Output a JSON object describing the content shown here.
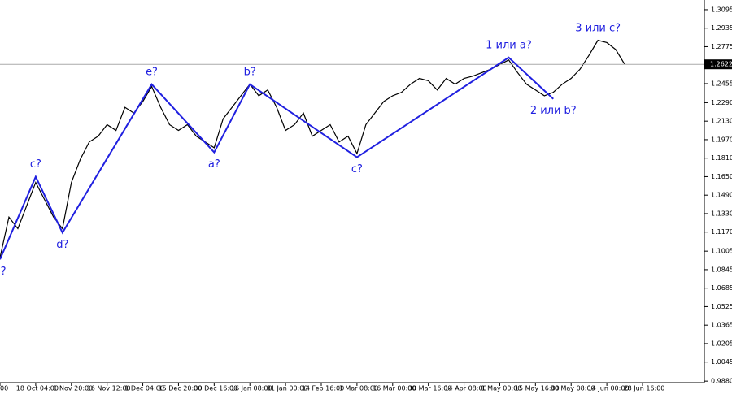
{
  "chart_data": {
    "type": "line",
    "categories": [
      "00",
      null,
      null,
      null,
      "18 Oct 04:00",
      null,
      null,
      null,
      "1 Nov 20:00",
      null,
      null,
      null,
      "16 Nov 12:00",
      null,
      null,
      null,
      "1 Dec 04:00",
      null,
      null,
      null,
      "15 Dec 20:00",
      null,
      null,
      null,
      "30 Dec 16:00",
      null,
      null,
      null,
      "16 Jan 08:00",
      null,
      null,
      null,
      "31 Jan 00:00",
      null,
      null,
      null,
      "14 Feb 16:00",
      null,
      null,
      null,
      "1 Mar 08:00",
      null,
      null,
      null,
      "16 Mar 00:00",
      null,
      null,
      null,
      "30 Mar 16:00",
      null,
      null,
      null,
      "14 Apr 08:00",
      null,
      null,
      null,
      "1 May 00:00",
      null,
      null,
      null,
      "15 May 16:00",
      null,
      null,
      null,
      "30 May 08:00",
      null,
      null,
      null,
      "14 Jun 00:00",
      null,
      null,
      null,
      "28 Jun 16:00"
    ],
    "series": [
      {
        "color": "#000000",
        "values": [
          1.095,
          1.13,
          1.12,
          1.14,
          1.16,
          1.145,
          1.13,
          1.12,
          1.16,
          1.18,
          1.195,
          1.2,
          1.21,
          1.205,
          1.225,
          1.22,
          1.23,
          1.243,
          1.225,
          1.21,
          1.205,
          1.21,
          1.2,
          1.195,
          1.19,
          1.215,
          1.225,
          1.235,
          1.245,
          1.235,
          1.24,
          1.225,
          1.205,
          1.21,
          1.22,
          1.2,
          1.205,
          1.21,
          1.195,
          1.2,
          1.185,
          1.21,
          1.22,
          1.23,
          1.235,
          1.238,
          1.245,
          1.25,
          1.248,
          1.24,
          1.25,
          1.245,
          1.25,
          1.252,
          1.255,
          1.258,
          1.262,
          1.266,
          1.255,
          1.245,
          1.24,
          1.235,
          1.238,
          1.245,
          1.25,
          1.258,
          1.27,
          1.283,
          1.281,
          1.275,
          1.2622,
          null,
          null
        ]
      }
    ],
    "waves": {
      "color": "#2020e0",
      "labels": [
        "b?",
        "c?",
        "d?",
        "e?",
        "a?",
        "b?",
        "c?",
        "1 или a?",
        "2 или b?",
        "3 или c?"
      ],
      "x": [
        0,
        4,
        7,
        17,
        24,
        28,
        40,
        57,
        62,
        67
      ],
      "y": [
        1.0934,
        1.1649,
        1.1165,
        1.2449,
        1.186,
        1.2449,
        1.1818,
        1.2681,
        1.2323,
        null
      ]
    },
    "current_price": 1.2622,
    "ylim": [
      0.9867,
      1.3179
    ],
    "yticks": [
      {
        "value": 1.3095,
        "label": "1.3095"
      },
      {
        "value": 1.2935,
        "label": "1.2935"
      },
      {
        "value": 1.2775,
        "label": "1.2775"
      },
      {
        "value": 1.2455,
        "label": "1.2455"
      },
      {
        "value": 1.229,
        "label": "1.2290"
      },
      {
        "value": 1.213,
        "label": "1.2130"
      },
      {
        "value": 1.197,
        "label": "1.1970"
      },
      {
        "value": 1.181,
        "label": "1.1810"
      },
      {
        "value": 1.165,
        "label": "1.1650"
      },
      {
        "value": 1.149,
        "label": "1.1490"
      },
      {
        "value": 1.133,
        "label": "1.1330"
      },
      {
        "value": 1.117,
        "label": "1.1170"
      },
      {
        "value": 1.1005,
        "label": "1.1005"
      },
      {
        "value": 1.0845,
        "label": "1.0845"
      },
      {
        "value": 1.0685,
        "label": "1.0685"
      },
      {
        "value": 1.0525,
        "label": "1.0525"
      },
      {
        "value": 1.0365,
        "label": "1.0365"
      },
      {
        "value": 1.0205,
        "label": "1.0205"
      },
      {
        "value": 1.0045,
        "label": "1.0045"
      },
      {
        "value": 0.988,
        "label": "0.9880"
      }
    ]
  }
}
